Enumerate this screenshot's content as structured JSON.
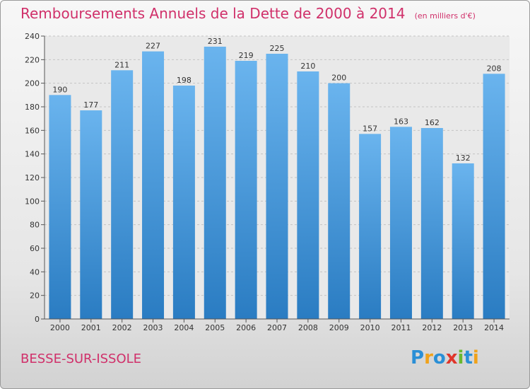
{
  "header": {
    "title": "Remboursements Annuels de la Dette de 2000 à 2014",
    "subtitle": "(en milliers d'€)"
  },
  "footer": {
    "commune": "BESSE-SUR-ISSOLE",
    "logo_text": "Proxiti",
    "logo_letters": [
      {
        "char": "P",
        "color": "#2a8fd6"
      },
      {
        "char": "r",
        "color": "#f0a21a"
      },
      {
        "char": "o",
        "color": "#2a8fd6"
      },
      {
        "char": "x",
        "color": "#e0362b"
      },
      {
        "char": "i",
        "color": "#6ab82f"
      },
      {
        "char": "t",
        "color": "#2a8fd6"
      },
      {
        "char": "i",
        "color": "#f0a21a"
      }
    ]
  },
  "colors": {
    "title": "#d0306a",
    "bar_light": "#6ab4ee",
    "bar_dark": "#2a7cc2"
  },
  "chart_data": {
    "type": "bar",
    "categories": [
      "2000",
      "2001",
      "2002",
      "2003",
      "2004",
      "2005",
      "2006",
      "2007",
      "2008",
      "2009",
      "2010",
      "2011",
      "2012",
      "2013",
      "2014"
    ],
    "values": [
      190,
      177,
      211,
      227,
      198,
      231,
      219,
      225,
      210,
      200,
      157,
      163,
      162,
      132,
      208
    ],
    "ylim": [
      0,
      240
    ],
    "yticks": [
      0,
      20,
      40,
      60,
      80,
      100,
      120,
      140,
      160,
      180,
      200,
      220,
      240
    ],
    "grid": true
  }
}
